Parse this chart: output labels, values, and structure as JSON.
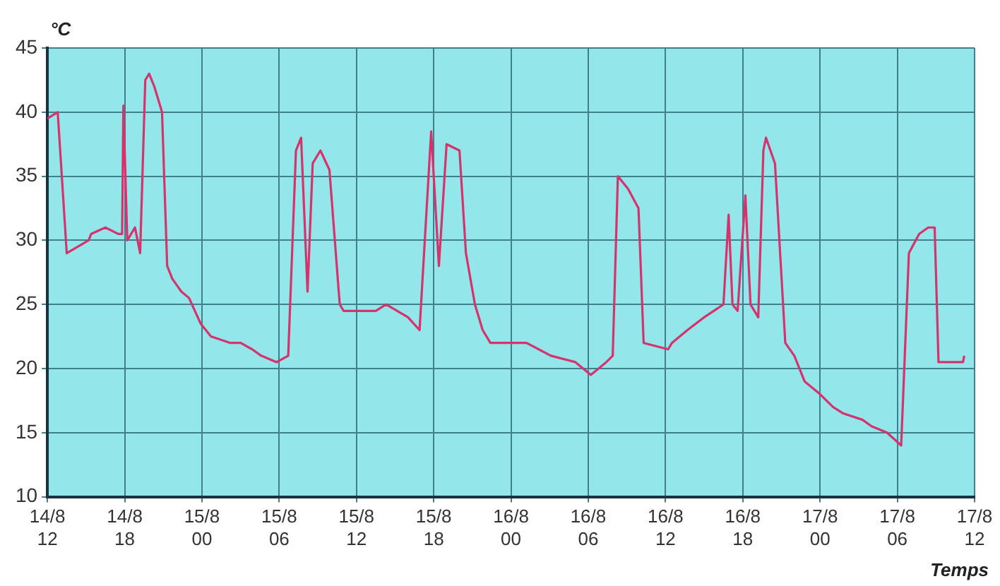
{
  "chart_data": {
    "type": "line",
    "xlabel": "Temps",
    "ylabel": "°C",
    "x": [
      "--08-14T12:00",
      "--08-14T12:48",
      "--08-14T13:30",
      "--08-14T15:12",
      "--08-14T15:24",
      "--08-14T16:30",
      "--08-14T17:30",
      "--08-14T17:48",
      "--08-14T17:54",
      "--08-14T18:12",
      "--08-14T18:48",
      "--08-14T19:12",
      "--08-14T19:36",
      "--08-14T19:54",
      "--08-14T20:18",
      "--08-14T20:54",
      "--08-14T21:18",
      "--08-14T21:42",
      "--08-14T22:24",
      "--08-14T23:00",
      "--08-14T23:54",
      "--08-15T00:42",
      "--08-15T02:12",
      "--08-15T03:00",
      "--08-15T03:54",
      "--08-15T04:36",
      "--08-15T05:48",
      "--08-15T06:42",
      "--08-15T07:18",
      "--08-15T07:42",
      "--08-15T08:12",
      "--08-15T08:36",
      "--08-15T09:12",
      "--08-15T09:54",
      "--08-15T10:42",
      "--08-15T11:00",
      "--08-15T13:30",
      "--08-15T14:18",
      "--08-15T16:00",
      "--08-15T16:54",
      "--08-15T17:48",
      "--08-15T18:24",
      "--08-15T19:00",
      "--08-15T20:00",
      "--08-15T20:30",
      "--08-15T21:12",
      "--08-15T21:48",
      "--08-15T22:24",
      "--08-16T01:12",
      "--08-16T03:06",
      "--08-16T05:00",
      "--08-16T06:12",
      "--08-16T07:24",
      "--08-16T07:54",
      "--08-16T08:18",
      "--08-16T09:06",
      "--08-16T09:54",
      "--08-16T10:18",
      "--08-16T12:12",
      "--08-16T12:30",
      "--08-16T13:42",
      "--08-16T15:00",
      "--08-16T16:30",
      "--08-16T16:54",
      "--08-16T17:12",
      "--08-16T17:36",
      "--08-16T18:12",
      "--08-16T18:36",
      "--08-16T19:12",
      "--08-16T19:36",
      "--08-16T19:48",
      "--08-16T20:30",
      "--08-16T21:18",
      "--08-16T22:00",
      "--08-16T22:48",
      "--08-17T00:00",
      "--08-17T01:00",
      "--08-17T01:48",
      "--08-17T03:18",
      "--08-17T04:00",
      "--08-17T05:12",
      "--08-17T06:18",
      "--08-17T06:54",
      "--08-17T07:42",
      "--08-17T08:24",
      "--08-17T08:54",
      "--08-17T09:12",
      "--08-17T11:06",
      "--08-17T11:12"
    ],
    "series": [
      {
        "color": "#d6336c",
        "values": [
          39.5,
          40,
          29,
          30,
          30.5,
          31,
          30.5,
          30.5,
          40.5,
          30,
          31,
          29,
          42.5,
          43,
          42,
          40,
          28,
          27,
          26,
          25.5,
          23.5,
          22.5,
          22,
          22,
          21.5,
          21,
          20.5,
          21,
          37,
          38,
          26,
          36,
          37,
          35.5,
          25,
          24.5,
          24.5,
          25,
          24,
          23,
          38.5,
          28,
          37.5,
          37,
          29,
          25,
          23,
          22,
          22,
          21,
          20.5,
          19.5,
          20.5,
          21,
          35,
          34,
          32.5,
          22,
          21.5,
          22,
          23,
          24,
          25,
          32,
          25,
          24.5,
          33.5,
          25,
          24,
          37,
          38,
          36,
          22,
          21,
          19,
          18,
          17,
          16.5,
          16,
          15.5,
          15,
          14,
          29,
          30.5,
          31,
          31,
          20.5,
          20.5,
          21
        ]
      }
    ],
    "xlim": [
      "--08-14T12:00",
      "--08-17T12:00"
    ],
    "xticks": [
      {
        "value": "--08-14T12:00",
        "label": "14/8\n12"
      },
      {
        "value": "--08-14T18:00",
        "label": "14/8\n18"
      },
      {
        "value": "--08-15T00:00",
        "label": "15/8\n00"
      },
      {
        "value": "--08-15T06:00",
        "label": "15/8\n06"
      },
      {
        "value": "--08-15T12:00",
        "label": "15/8\n12"
      },
      {
        "value": "--08-15T18:00",
        "label": "15/8\n18"
      },
      {
        "value": "--08-16T00:00",
        "label": "16/8\n00"
      },
      {
        "value": "--08-16T06:00",
        "label": "16/8\n06"
      },
      {
        "value": "--08-16T12:00",
        "label": "16/8\n12"
      },
      {
        "value": "--08-16T18:00",
        "label": "16/8\n18"
      },
      {
        "value": "--08-17T00:00",
        "label": "17/8\n00"
      },
      {
        "value": "--08-17T06:00",
        "label": "17/8\n06"
      },
      {
        "value": "--08-17T12:00",
        "label": "17/8\n12"
      }
    ],
    "ylim": [
      10,
      45
    ],
    "yticks": [
      10,
      15,
      20,
      25,
      30,
      35,
      40,
      45
    ],
    "grid": true,
    "legend": false,
    "marker": "none",
    "line_style": "solid"
  }
}
